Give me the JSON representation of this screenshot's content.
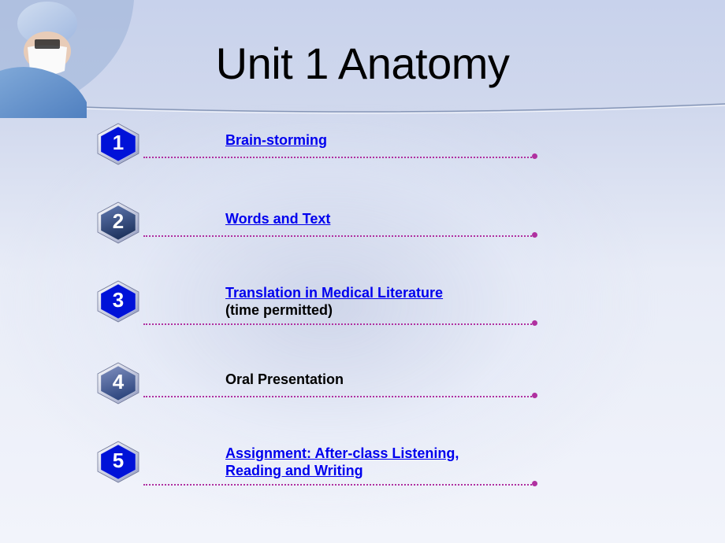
{
  "title": "Unit 1 Anatomy",
  "items": [
    {
      "num": "1",
      "lines": [
        {
          "text": "Brain-storming",
          "link": true
        }
      ],
      "hex_fill": "#0012d8",
      "hex_grad": [
        "#0012d8",
        "#0012d8"
      ],
      "tall": false
    },
    {
      "num": "2",
      "lines": [
        {
          "text": "Words and Text",
          "link": true
        }
      ],
      "hex_fill": "#0012d8",
      "hex_grad": [
        "#6078b0",
        "#203560"
      ],
      "tall": false
    },
    {
      "num": "3",
      "lines": [
        {
          "text": "Translation in Medical Literature",
          "link": true
        },
        {
          "text": "(time permitted)",
          "link": false
        }
      ],
      "hex_fill": "#0012d8",
      "hex_grad": [
        "#0012d8",
        "#0012d8"
      ],
      "tall": true
    },
    {
      "num": "4",
      "lines": [
        {
          "text": "Oral Presentation",
          "link": false
        }
      ],
      "hex_fill": "#0012d8",
      "hex_grad": [
        "#8090c0",
        "#304880"
      ],
      "tall": false
    },
    {
      "num": "5",
      "lines": [
        {
          "text": "Assignment: After-class Listening,",
          "link": true
        },
        {
          "text": "Reading and Writing",
          "link": true
        }
      ],
      "hex_fill": "#0012d8",
      "hex_grad": [
        "#0012d8",
        "#0012d8"
      ],
      "tall": true
    }
  ],
  "style": {
    "dotted_color": "#b030a0",
    "link_color": "#0000ee",
    "text_color": "#000000",
    "font_size_title": 56,
    "font_size_item": 18,
    "hex_border_color": "#e8e8f2",
    "hex_border_highlight": "#ffffff"
  }
}
